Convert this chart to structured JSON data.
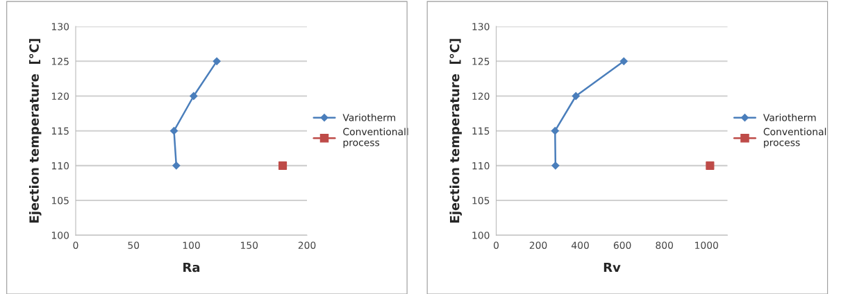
{
  "chart_data": [
    {
      "type": "line",
      "xlabel": "Ra",
      "ylabel": "Ejection temperature  [°C]",
      "xlim": [
        0,
        200
      ],
      "xticks": [
        0,
        50,
        100,
        150,
        200
      ],
      "ylim": [
        100,
        130
      ],
      "yticks": [
        100,
        105,
        110,
        115,
        120,
        125,
        130
      ],
      "grid": "y",
      "legend": "right",
      "series": [
        {
          "name": "Variotherm",
          "color": "#4a7ebb",
          "marker": "diamond",
          "x": [
            87,
            85,
            102,
            122
          ],
          "values": [
            110,
            115,
            120,
            125
          ]
        },
        {
          "name": "Conventionall process",
          "color": "#be4b48",
          "type": "scatter",
          "marker": "square",
          "x": [
            179
          ],
          "values": [
            110
          ]
        }
      ]
    },
    {
      "type": "line",
      "xlabel": "Rv",
      "ylabel": "Ejection temperature  [°C]",
      "xlim": [
        0,
        1100
      ],
      "xticks": [
        0,
        200,
        400,
        600,
        800,
        1000
      ],
      "ylim": [
        100,
        130
      ],
      "yticks": [
        100,
        105,
        110,
        115,
        120,
        125,
        130
      ],
      "grid": "y",
      "legend": "right",
      "series": [
        {
          "name": "Variotherm",
          "color": "#4a7ebb",
          "marker": "diamond",
          "x": [
            282,
            280,
            379,
            607
          ],
          "values": [
            110,
            115,
            120,
            125
          ]
        },
        {
          "name": "Conventional process",
          "color": "#be4b48",
          "type": "scatter",
          "marker": "square",
          "x": [
            1017
          ],
          "values": [
            110
          ]
        }
      ]
    }
  ]
}
